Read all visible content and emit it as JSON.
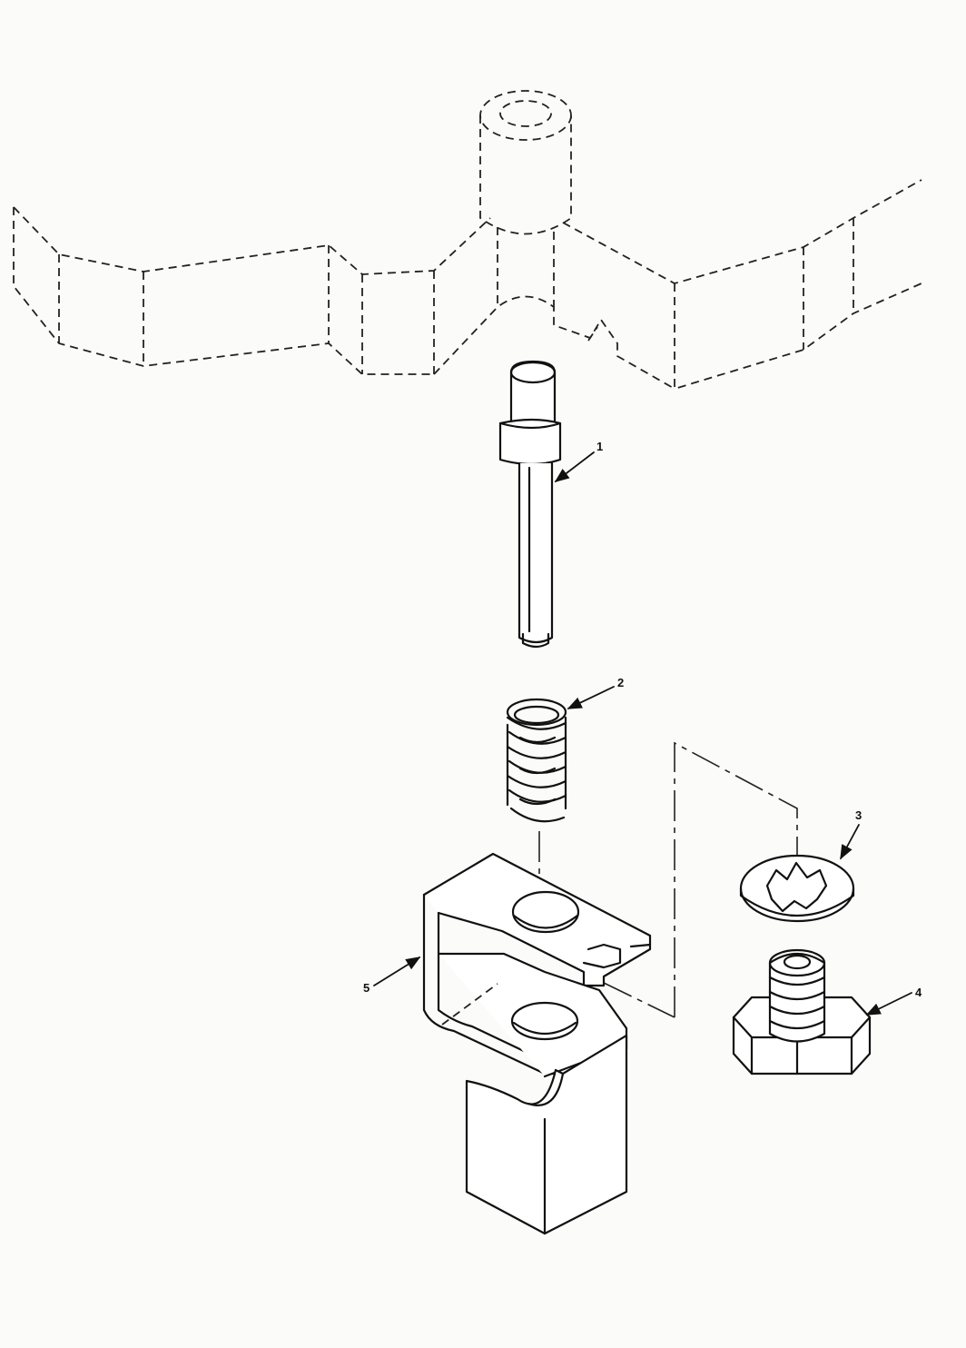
{
  "callouts": [
    {
      "id": "1",
      "label": "1"
    },
    {
      "id": "2",
      "label": "2"
    },
    {
      "id": "3",
      "label": "3"
    },
    {
      "id": "4",
      "label": "4"
    },
    {
      "id": "5",
      "label": "5"
    }
  ]
}
